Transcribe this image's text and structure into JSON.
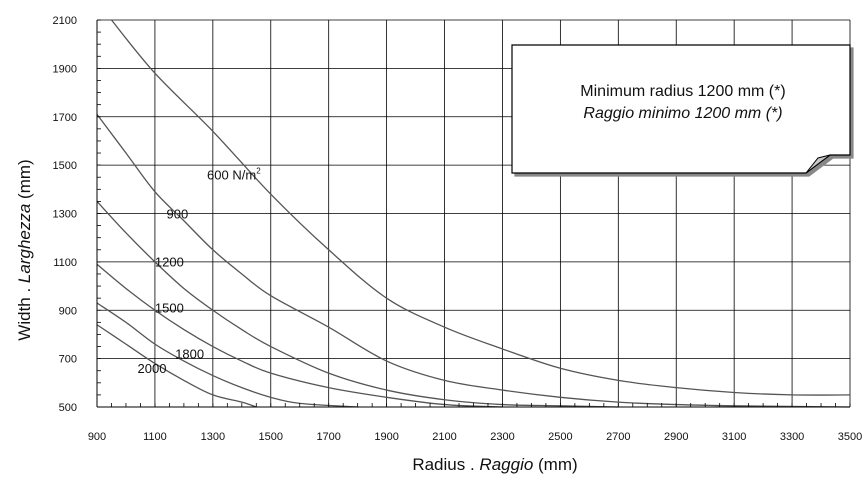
{
  "chart_data": {
    "type": "line",
    "xlabel": {
      "main": "Radius . ",
      "italic": "Raggio",
      "unit": " (mm)"
    },
    "ylabel": {
      "main": "Width . ",
      "italic": "Larghezza",
      "unit": " (mm)"
    },
    "xlim": [
      900,
      3500
    ],
    "ylim": [
      500,
      2100
    ],
    "x_ticks": [
      900,
      1100,
      1300,
      1500,
      1700,
      1900,
      2100,
      2300,
      2500,
      2700,
      2900,
      3100,
      3300,
      3500
    ],
    "y_ticks": [
      500,
      700,
      900,
      1100,
      1300,
      1500,
      1700,
      1900,
      2100
    ],
    "grid": true,
    "note": {
      "line1": "Minimum radius 1200 mm (*)",
      "line2": "Raggio minimo 1200 mm (*)"
    },
    "series": [
      {
        "name": "600 N/m²",
        "label_main": "600 N/m",
        "label_sup": "2",
        "x": [
          950,
          1100,
          1300,
          1500,
          1700,
          1900,
          2100,
          2300,
          2500,
          2700,
          2900,
          3100,
          3300,
          3500
        ],
        "y": [
          2100,
          1880,
          1640,
          1380,
          1150,
          950,
          830,
          740,
          660,
          610,
          580,
          560,
          550,
          550
        ]
      },
      {
        "name": "900",
        "label_main": "900",
        "label_sup": "",
        "x": [
          900,
          1000,
          1100,
          1200,
          1300,
          1400,
          1500,
          1700,
          1900,
          2100,
          2300,
          2500,
          2700,
          2900,
          3100,
          3500
        ],
        "y": [
          1710,
          1550,
          1390,
          1270,
          1150,
          1050,
          960,
          830,
          690,
          610,
          570,
          540,
          520,
          510,
          505,
          500
        ]
      },
      {
        "name": "1200",
        "label_main": "1200",
        "label_sup": "",
        "x": [
          900,
          1000,
          1100,
          1200,
          1300,
          1400,
          1500,
          1700,
          1900,
          2100,
          2300,
          2500,
          2700
        ],
        "y": [
          1350,
          1220,
          1100,
          990,
          900,
          820,
          750,
          640,
          570,
          530,
          510,
          505,
          500
        ]
      },
      {
        "name": "1500",
        "label_main": "1500",
        "label_sup": "",
        "x": [
          900,
          1000,
          1100,
          1200,
          1300,
          1400,
          1500,
          1700,
          1900,
          2100,
          2300
        ],
        "y": [
          1090,
          990,
          900,
          820,
          750,
          690,
          640,
          580,
          540,
          510,
          500
        ]
      },
      {
        "name": "1800",
        "label_main": "1800",
        "label_sup": "",
        "x": [
          900,
          1000,
          1100,
          1200,
          1300,
          1400,
          1500,
          1600,
          1800
        ],
        "y": [
          930,
          850,
          760,
          690,
          630,
          580,
          540,
          515,
          500
        ]
      },
      {
        "name": "2000",
        "label_main": "2000",
        "label_sup": "",
        "x": [
          900,
          1000,
          1100,
          1200,
          1300,
          1400,
          1450
        ],
        "y": [
          840,
          760,
          680,
          610,
          550,
          520,
          500
        ]
      }
    ]
  }
}
